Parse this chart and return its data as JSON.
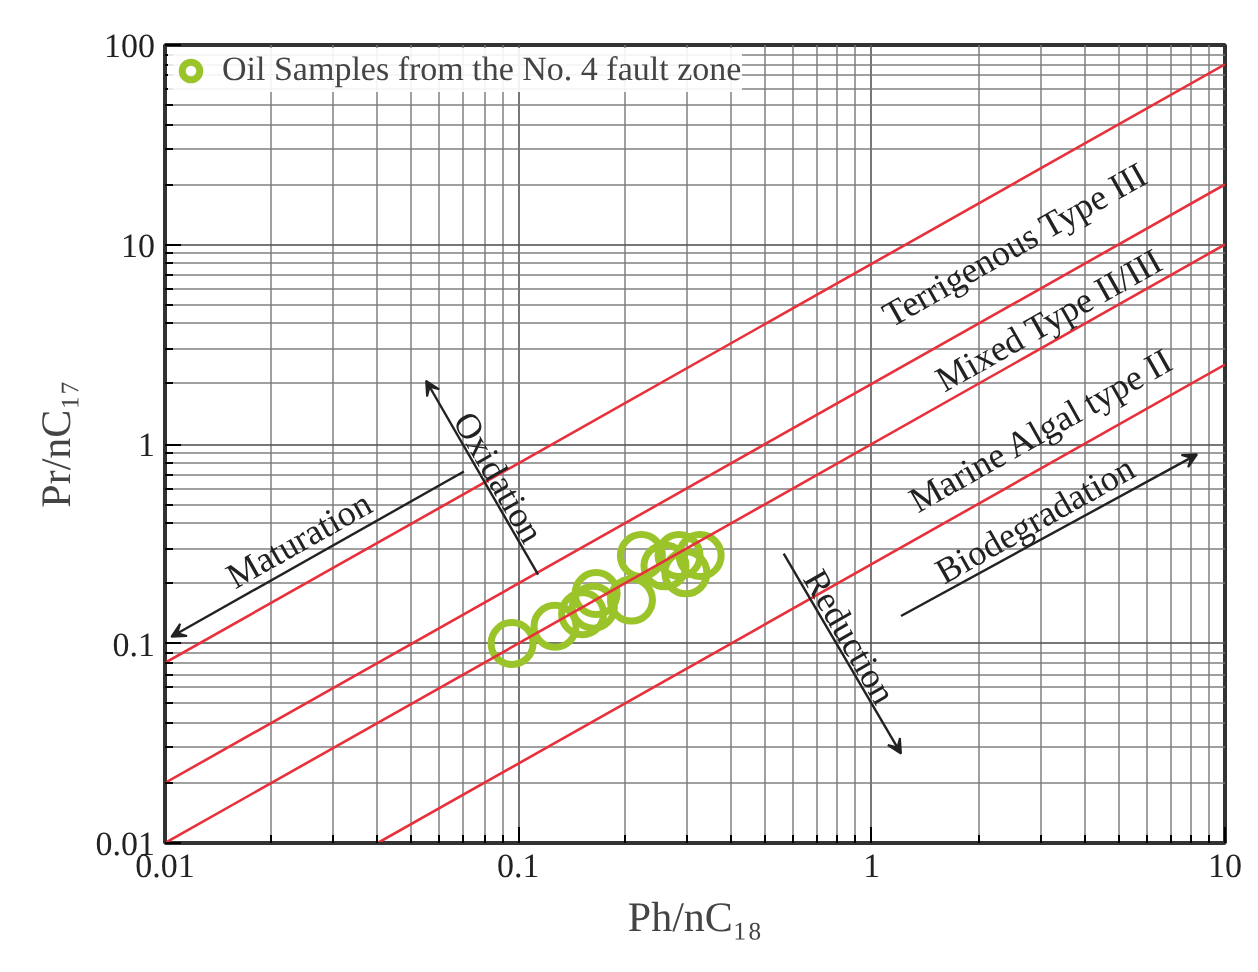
{
  "chart_data": {
    "type": "scatter",
    "xlabel": "Ph/nC₁₈",
    "ylabel": "Pr/nC₁₇",
    "log": "xy",
    "xlim": [
      0.01,
      10
    ],
    "ylim": [
      0.01,
      100
    ],
    "xticks": [
      0.01,
      0.1,
      1,
      10
    ],
    "yticks": [
      0.01,
      0.1,
      1,
      10,
      100
    ],
    "grid": true,
    "legend": "top left",
    "series": [
      {
        "name": "Oil Samples from the No. 4 fault zone",
        "marker": "circle",
        "color": "#9ac42a",
        "x": [
          0.096,
          0.127,
          0.152,
          0.163,
          0.166,
          0.209,
          0.223,
          0.26,
          0.285,
          0.327,
          0.298
        ],
        "values": [
          0.1,
          0.122,
          0.141,
          0.152,
          0.178,
          0.165,
          0.276,
          0.245,
          0.276,
          0.276,
          0.226
        ]
      },
      {
        "type": "line",
        "color": "#e8303a",
        "x": [
          0.01,
          10
        ],
        "values": [
          0.08,
          80
        ]
      },
      {
        "type": "line",
        "color": "#e8303a",
        "x": [
          0.01,
          10
        ],
        "values": [
          0.02,
          20
        ]
      },
      {
        "type": "line",
        "color": "#e8303a",
        "x": [
          0.01,
          10
        ],
        "values": [
          0.01,
          10
        ]
      },
      {
        "type": "line",
        "color": "#e8303a",
        "x": [
          0.04,
          10
        ],
        "values": [
          0.01,
          2.5
        ]
      }
    ],
    "annotations": [
      "Terrigenous Type III",
      "Mixed Type II/III",
      "Marine Algal type II",
      "Maturation",
      "Oxidation",
      "Biodegradation",
      "Reduction"
    ]
  }
}
